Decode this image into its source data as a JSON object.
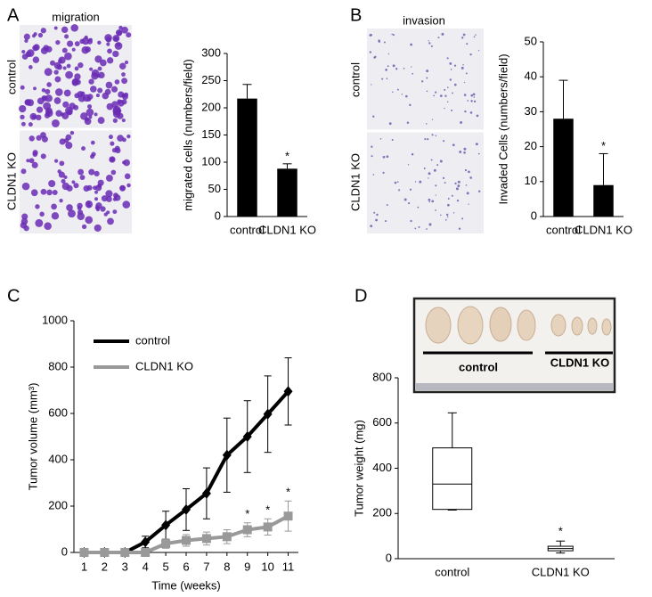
{
  "chart_data": [
    {
      "type": "bar",
      "label": "A",
      "image_title": "migration",
      "image_rows": [
        "control",
        "CLDN1 KO"
      ],
      "categories": [
        "control",
        "CLDN1 KO"
      ],
      "values": [
        217,
        88
      ],
      "errors": [
        26,
        9
      ],
      "value_annotations": [
        null,
        "*"
      ],
      "color": "#000000",
      "ylabel": "migrated cells (numbers/field)",
      "ylim": [
        0,
        300
      ],
      "yticks": [
        0,
        50,
        100,
        150,
        200,
        250,
        300
      ]
    },
    {
      "type": "bar",
      "label": "B",
      "image_title": "invasion",
      "image_rows": [
        "control",
        "CLDN1 KO"
      ],
      "categories": [
        "control",
        "CLDN1 KO"
      ],
      "values": [
        28,
        9
      ],
      "errors": [
        11,
        9
      ],
      "value_annotations": [
        null,
        "*"
      ],
      "color": "#000000",
      "ylabel": "Invaded Cells (numbers/field)",
      "ylim": [
        0,
        50
      ],
      "yticks": [
        0,
        10,
        20,
        30,
        40,
        50
      ]
    },
    {
      "type": "line",
      "label": "C",
      "x": [
        1,
        2,
        3,
        4,
        5,
        6,
        7,
        8,
        9,
        10,
        11
      ],
      "xlim": [
        0.5,
        11.5
      ],
      "xlabel": "Time (weeks)",
      "ylabel": "Tumor volume (mm³)",
      "ylim": [
        0,
        1000
      ],
      "yticks": [
        0,
        200,
        400,
        600,
        800,
        1000
      ],
      "series": [
        {
          "name": "control",
          "color": "#000000",
          "marker": "diamond",
          "values": [
            0,
            0,
            0,
            45,
            118,
            185,
            255,
            420,
            500,
            597,
            695
          ],
          "errors": [
            0,
            0,
            0,
            25,
            60,
            90,
            110,
            160,
            155,
            165,
            145
          ],
          "annotations": [
            null,
            null,
            null,
            null,
            null,
            null,
            null,
            null,
            null,
            null,
            null
          ]
        },
        {
          "name": "CLDN1 KO",
          "color": "#999999",
          "marker": "square",
          "values": [
            0,
            0,
            0,
            0,
            38,
            52,
            60,
            68,
            98,
            110,
            157
          ],
          "errors": [
            0,
            0,
            0,
            0,
            20,
            25,
            28,
            30,
            30,
            35,
            65
          ],
          "annotations": [
            null,
            null,
            null,
            null,
            null,
            null,
            null,
            null,
            "*",
            "*",
            "*"
          ]
        }
      ]
    },
    {
      "type": "box",
      "label": "D",
      "photo_labels": [
        "control",
        "CLDN1 KO"
      ],
      "categories": [
        "control",
        "CLDN1 KO"
      ],
      "boxes": [
        {
          "min": 215,
          "q1": 218,
          "median": 330,
          "q3": 490,
          "max": 645
        },
        {
          "min": 25,
          "q1": 35,
          "median": 45,
          "q3": 55,
          "max": 78
        }
      ],
      "value_annotations": [
        null,
        "*"
      ],
      "ylabel": "Tumor weight (mg)",
      "ylim": [
        0,
        800
      ],
      "yticks": [
        0,
        200,
        400,
        600,
        800
      ]
    }
  ]
}
